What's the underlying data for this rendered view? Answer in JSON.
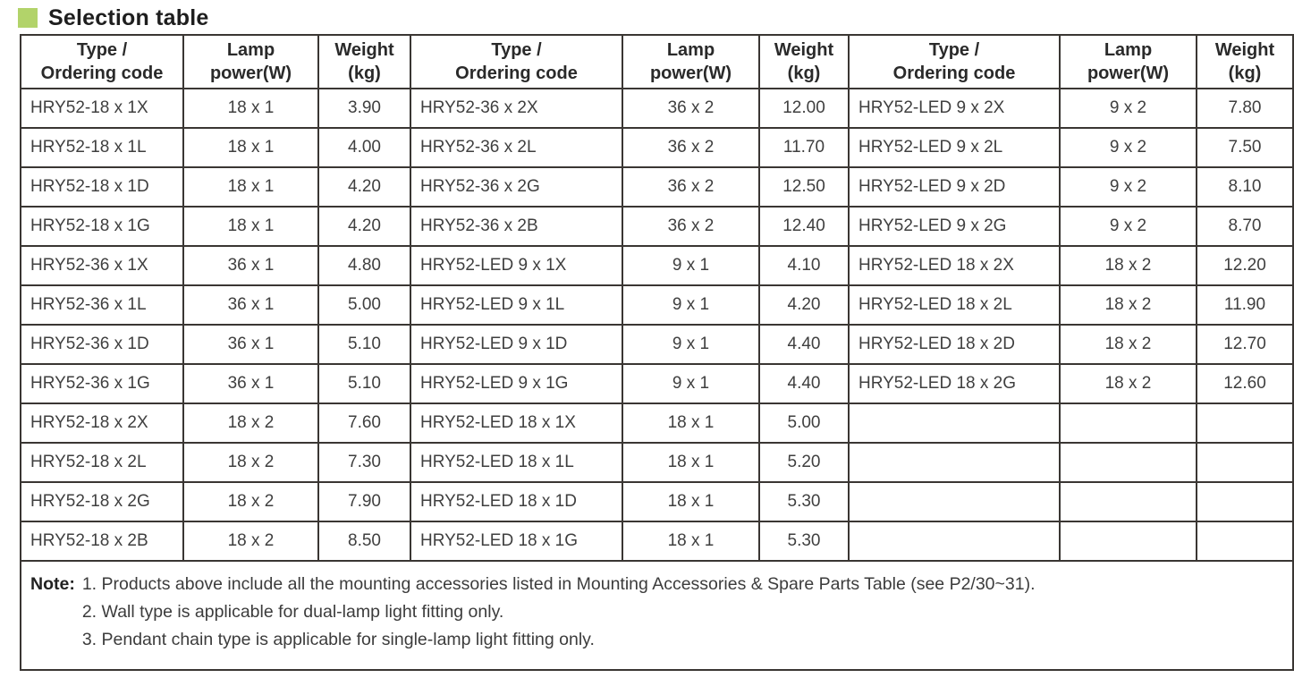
{
  "title": "Selection table",
  "accent_color": "#b2d36a",
  "border_color": "#3a3633",
  "table": {
    "header_repeat": 3,
    "column_headers": [
      "Type /\nOrdering code",
      "Lamp\npower(W)",
      "Weight\n(kg)"
    ],
    "rows": [
      [
        "HRY52-18 x 1X",
        "18 x 1",
        "3.90",
        "HRY52-36 x 2X",
        "36 x 2",
        "12.00",
        "HRY52-LED 9 x 2X",
        "9 x 2",
        "7.80"
      ],
      [
        "HRY52-18 x 1L",
        "18 x 1",
        "4.00",
        "HRY52-36 x 2L",
        "36 x 2",
        "11.70",
        "HRY52-LED 9 x 2L",
        "9 x 2",
        "7.50"
      ],
      [
        "HRY52-18 x 1D",
        "18 x 1",
        "4.20",
        "HRY52-36 x 2G",
        "36 x 2",
        "12.50",
        "HRY52-LED 9 x 2D",
        "9 x 2",
        "8.10"
      ],
      [
        "HRY52-18 x 1G",
        "18 x 1",
        "4.20",
        "HRY52-36 x 2B",
        "36 x 2",
        "12.40",
        "HRY52-LED 9 x 2G",
        "9 x 2",
        "8.70"
      ],
      [
        "HRY52-36 x 1X",
        "36 x 1",
        "4.80",
        "HRY52-LED 9 x 1X",
        "9 x 1",
        "4.10",
        "HRY52-LED 18 x 2X",
        "18 x 2",
        "12.20"
      ],
      [
        "HRY52-36 x 1L",
        "36 x 1",
        "5.00",
        "HRY52-LED 9 x 1L",
        "9 x 1",
        "4.20",
        "HRY52-LED 18 x 2L",
        "18 x 2",
        "11.90"
      ],
      [
        "HRY52-36 x 1D",
        "36 x 1",
        "5.10",
        "HRY52-LED 9 x 1D",
        "9 x 1",
        "4.40",
        "HRY52-LED 18 x 2D",
        "18 x 2",
        "12.70"
      ],
      [
        "HRY52-36 x 1G",
        "36 x 1",
        "5.10",
        "HRY52-LED 9 x 1G",
        "9 x 1",
        "4.40",
        "HRY52-LED 18 x 2G",
        "18 x 2",
        "12.60"
      ],
      [
        "HRY52-18 x 2X",
        "18 x 2",
        "7.60",
        "HRY52-LED 18 x 1X",
        "18 x 1",
        "5.00",
        "",
        "",
        ""
      ],
      [
        "HRY52-18 x 2L",
        "18 x 2",
        "7.30",
        "HRY52-LED 18 x 1L",
        "18 x 1",
        "5.20",
        "",
        "",
        ""
      ],
      [
        "HRY52-18 x 2G",
        "18 x 2",
        "7.90",
        "HRY52-LED 18 x 1D",
        "18 x 1",
        "5.30",
        "",
        "",
        ""
      ],
      [
        "HRY52-18 x 2B",
        "18 x 2",
        "8.50",
        "HRY52-LED 18 x 1G",
        "18 x 1",
        "5.30",
        "",
        "",
        ""
      ]
    ]
  },
  "note": {
    "label": "Note:",
    "items": [
      "1. Products above include all the mounting accessories listed in Mounting Accessories & Spare Parts Table (see P2/30~31).",
      "2. Wall type is applicable for dual-lamp light fitting only.",
      "3. Pendant chain type is applicable for single-lamp light fitting only."
    ]
  }
}
